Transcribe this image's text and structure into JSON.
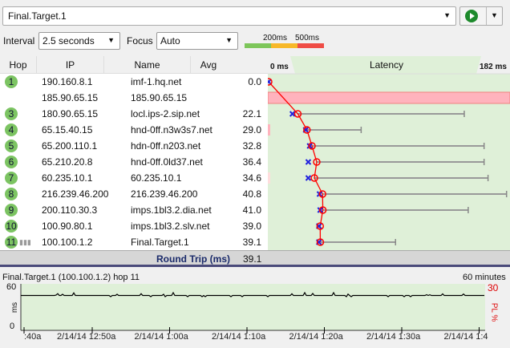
{
  "toolbar": {
    "target": "Final.Target.1",
    "interval_label": "Interval",
    "interval_value": "2.5 seconds",
    "focus_label": "Focus",
    "focus_value": "Auto",
    "scale_200": "200ms",
    "scale_500": "500ms"
  },
  "columns": {
    "hop": "Hop",
    "ip": "IP",
    "name": "Name",
    "avg": "Avg",
    "latency": "Latency",
    "lat_min": "0 ms",
    "lat_max": "182 ms"
  },
  "latency_max_ms": 182,
  "hops": [
    {
      "hop": "1",
      "ip": "190.160.8.1",
      "name": "imf-1.hq.net",
      "avg": "0.0",
      "avg_v": 0,
      "min": 0,
      "max": 0,
      "loss": false
    },
    {
      "hop": "",
      "ip": "185.90.65.15",
      "name": "185.90.65.15",
      "avg": "",
      "avg_v": null,
      "min": null,
      "max": null,
      "loss": true
    },
    {
      "hop": "3",
      "ip": "180.90.65.15",
      "name": "locl.ips-2.sip.net",
      "avg": "22.1",
      "avg_v": 22.1,
      "min": 18,
      "max": 148
    },
    {
      "hop": "4",
      "ip": "65.15.40.15",
      "name": "hnd-0ff.n3w3s7.net",
      "avg": "29.0",
      "avg_v": 29.0,
      "min": 28,
      "max": 70
    },
    {
      "hop": "5",
      "ip": "65.200.110.1",
      "name": "hdn-0ff.n203.net",
      "avg": "32.8",
      "avg_v": 32.8,
      "min": 31,
      "max": 163
    },
    {
      "hop": "6",
      "ip": "65.210.20.8",
      "name": "hnd-0ff.0ld37.net",
      "avg": "36.4",
      "avg_v": 36.4,
      "min": 30,
      "max": 163
    },
    {
      "hop": "7",
      "ip": "60.235.10.1",
      "name": "60.235.10.1",
      "avg": "34.6",
      "avg_v": 34.6,
      "min": 30,
      "max": 166
    },
    {
      "hop": "8",
      "ip": "216.239.46.200",
      "name": "216.239.46.200",
      "avg": "40.8",
      "avg_v": 40.8,
      "min": 38.5,
      "max": 180
    },
    {
      "hop": "9",
      "ip": "200.110.30.3",
      "name": "imps.1bl3.2.dia.net",
      "avg": "41.0",
      "avg_v": 41.0,
      "min": 39,
      "max": 151
    },
    {
      "hop": "10",
      "ip": "100.90.80.1",
      "name": "imps.1bl3.2.slv.net",
      "avg": "39.0",
      "avg_v": 39.0,
      "min": 38,
      "max": 39
    },
    {
      "hop": "11",
      "ip": "100.100.1.2",
      "name": "Final.Target.1",
      "avg": "39.1",
      "avg_v": 39.1,
      "min": 38,
      "max": 96
    }
  ],
  "round_trip": {
    "label": "Round Trip (ms)",
    "value": "39.1"
  },
  "history": {
    "title": "Final.Target.1 (100.100.1.2) hop 11",
    "span": "60 minutes",
    "y_top": "60",
    "y_bottom": "0",
    "y_label": "ms",
    "pl_top": "30",
    "pl_label": "PL %",
    "x_ticks": [
      ":40a",
      "2/14/14 12:50a",
      "2/14/14 1:00a",
      "2/14/14 1:10a",
      "2/14/14 1:20a",
      "2/14/14 1:30a",
      "2/14/14 1:4"
    ],
    "baseline_ms": 45
  }
}
